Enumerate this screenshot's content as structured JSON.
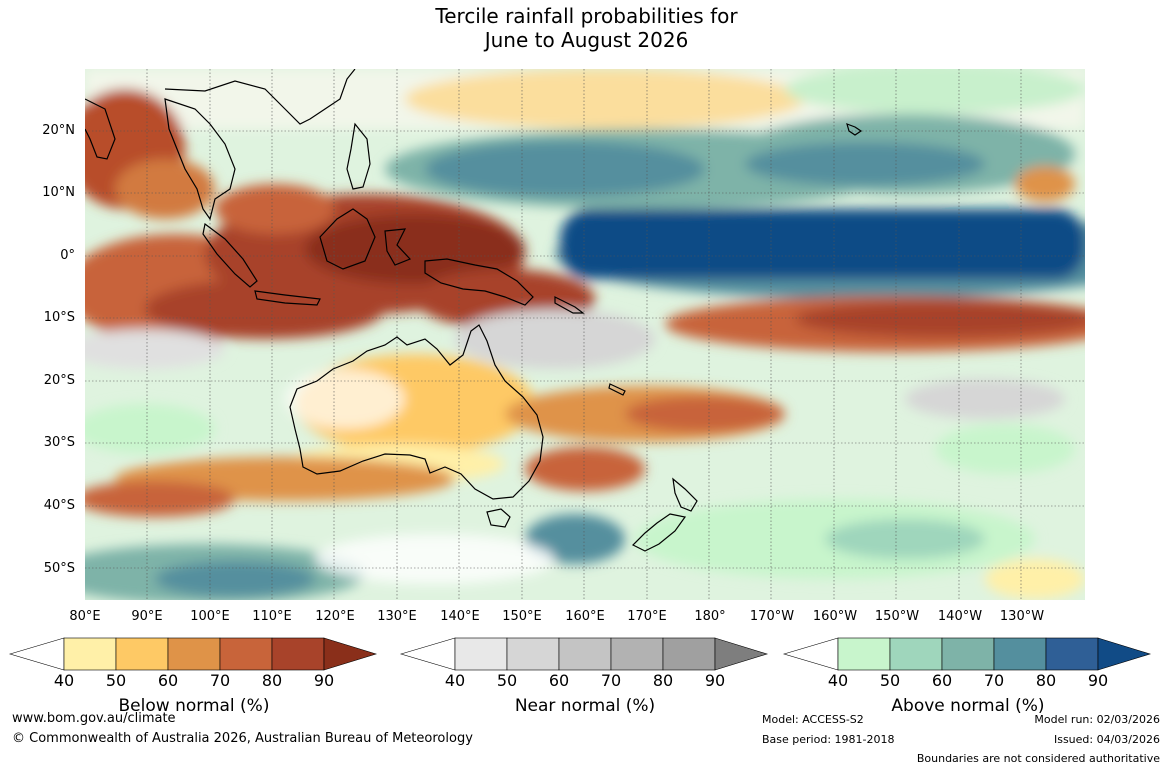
{
  "title": {
    "line1": "Tercile rainfall probabilities for",
    "line2": "June to August 2026"
  },
  "map": {
    "lat_labels": [
      "20°N",
      "10°N",
      "0°",
      "10°S",
      "20°S",
      "30°S",
      "40°S",
      "50°S"
    ],
    "lon_labels": [
      "80°E",
      "90°E",
      "100°E",
      "110°E",
      "120°E",
      "130°E",
      "140°E",
      "150°E",
      "160°E",
      "170°E",
      "180°",
      "170°W",
      "160°W",
      "150°W",
      "140°W",
      "130°W"
    ]
  },
  "legends": [
    {
      "title": "Below normal (%)",
      "ticks": [
        "40",
        "50",
        "60",
        "70",
        "80",
        "90"
      ],
      "colors": [
        "#ffffff",
        "#fff0a8",
        "#fec965",
        "#df9348",
        "#c8643a",
        "#a8432a",
        "#8a2f1a"
      ]
    },
    {
      "title": "Near normal (%)",
      "ticks": [
        "40",
        "50",
        "60",
        "70",
        "80",
        "90"
      ],
      "colors": [
        "#ffffff",
        "#e8e8e8",
        "#d6d6d6",
        "#c4c4c4",
        "#b2b2b2",
        "#a0a0a0",
        "#7e7e7e"
      ]
    },
    {
      "title": "Above normal (%)",
      "ticks": [
        "40",
        "50",
        "60",
        "70",
        "80",
        "90"
      ],
      "colors": [
        "#ffffff",
        "#c8f5cc",
        "#9fd6bc",
        "#7eb3a8",
        "#548f9e",
        "#2f5f96",
        "#114b86"
      ]
    }
  ],
  "footer": {
    "website": "www.bom.gov.au/climate",
    "copyright": "© Commonwealth of Australia 2026, Australian Bureau of Meteorology",
    "model": "Model: ACCESS-S2",
    "base_period": "Base period: 1981-2018",
    "model_run": "Model run: 02/03/2026",
    "issued": "Issued: 04/03/2026",
    "disclaimer": "Boundaries are not considered authoritative"
  }
}
